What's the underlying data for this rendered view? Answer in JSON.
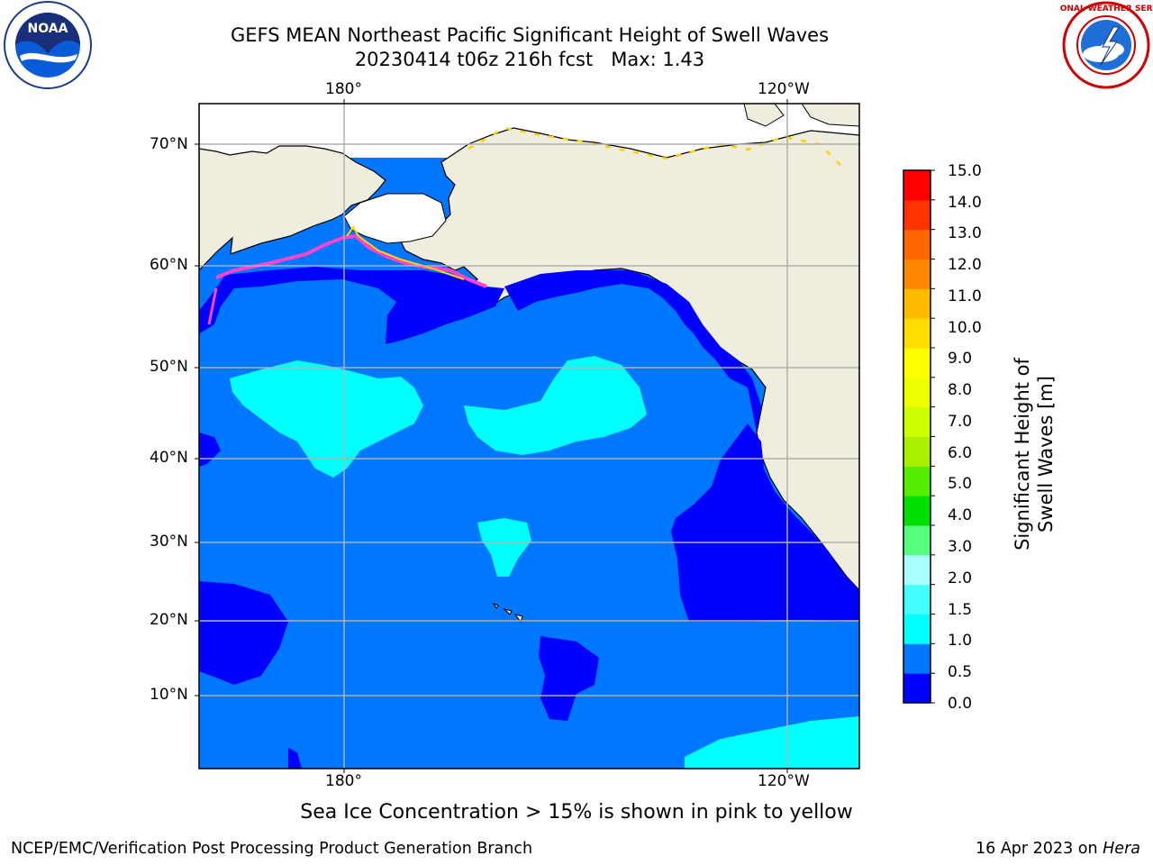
{
  "header": {
    "title_line1": "GEFS MEAN Northeast Pacific Significant Height of Swell Waves",
    "title_line2": "20230414 t06z 216h fcst   Max: 1.43",
    "left_logo": {
      "name": "noaa-logo",
      "text": "NOAA"
    },
    "right_logo": {
      "name": "nws-logo",
      "text": "NATIONAL WEATHER SERVICE"
    }
  },
  "map": {
    "top_axis_labels": [
      "180°",
      "120°W"
    ],
    "bottom_axis_labels": [
      "180°",
      "120°W"
    ],
    "lat_labels": [
      "70°N",
      "60°N",
      "50°N",
      "40°N",
      "30°N",
      "20°N",
      "10°N"
    ],
    "colors": {
      "land": "#efeddd",
      "ice_free_land": "#ffffff",
      "wave_0_0p5": "#0000ff",
      "wave_0p5_1": "#0077ff",
      "wave_1_1p5": "#00ffff",
      "ice_pink": "#ff44cc",
      "ice_yellow": "#ffd200",
      "grid": "#b0b0b0",
      "coast": "#000000"
    }
  },
  "colorbar": {
    "levels": [
      "15.0",
      "14.0",
      "13.0",
      "12.0",
      "11.0",
      "10.0",
      "9.0",
      "8.0",
      "7.0",
      "6.0",
      "5.0",
      "4.0",
      "3.0",
      "2.0",
      "1.5",
      "1.0",
      "0.5",
      "0.0"
    ],
    "colors": [
      "#0000ff",
      "#0077ff",
      "#00ffff",
      "#44ffff",
      "#aaffff",
      "#55ff7f",
      "#00e000",
      "#55ee00",
      "#aaee00",
      "#ccff00",
      "#eeff00",
      "#ffff00",
      "#ffdd00",
      "#ffbb00",
      "#ff8800",
      "#ff6600",
      "#ff3300",
      "#ff0000"
    ],
    "label": "Significant Height of Swell Waves [m]"
  },
  "note": "Sea Ice Concentration > 15% is shown in pink to yellow",
  "footer": {
    "left": "NCEP/EMC/Verification Post Processing Product Generation Branch",
    "right_date": "16 Apr 2023 on ",
    "right_machine": "Hera"
  }
}
